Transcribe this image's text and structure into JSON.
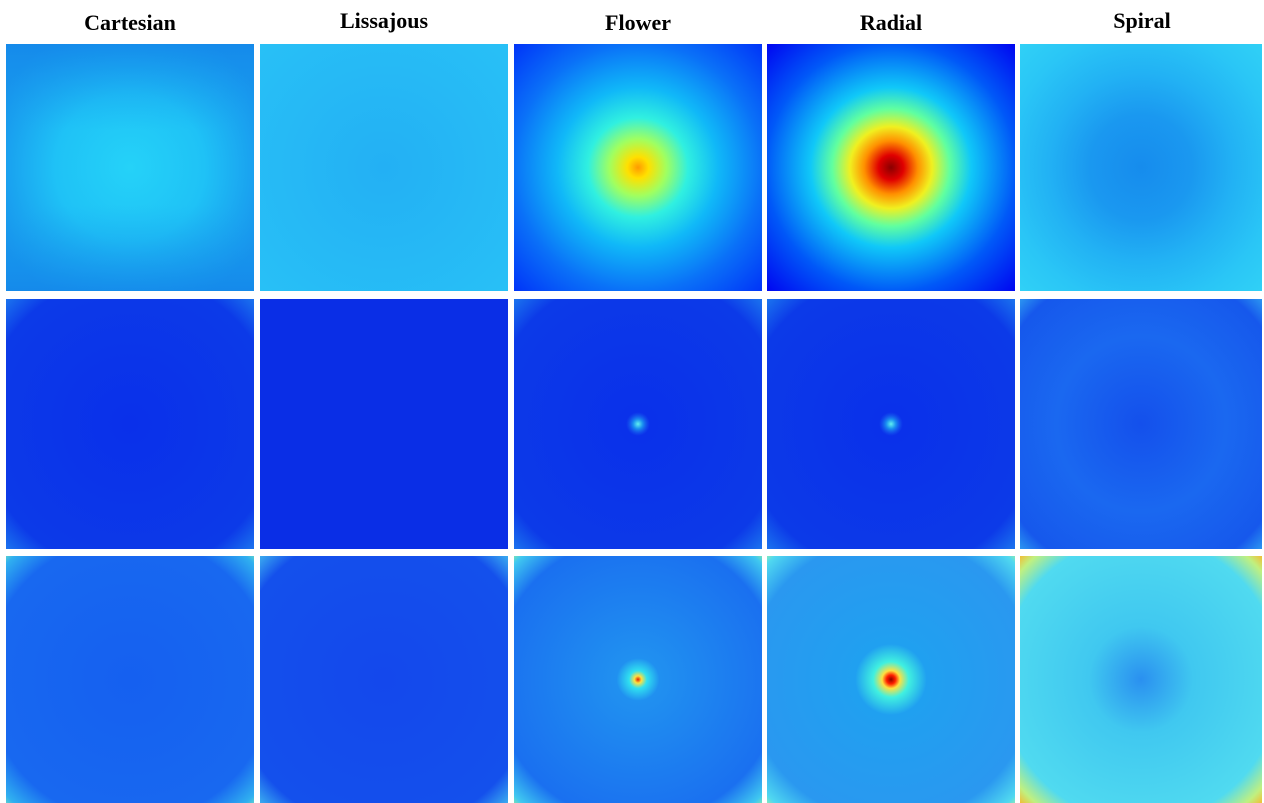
{
  "columns": [
    {
      "title": "Cartesian"
    },
    {
      "title": "Lissajous"
    },
    {
      "title": "Flower"
    },
    {
      "title": "Radial"
    },
    {
      "title": "Spiral"
    }
  ]
}
